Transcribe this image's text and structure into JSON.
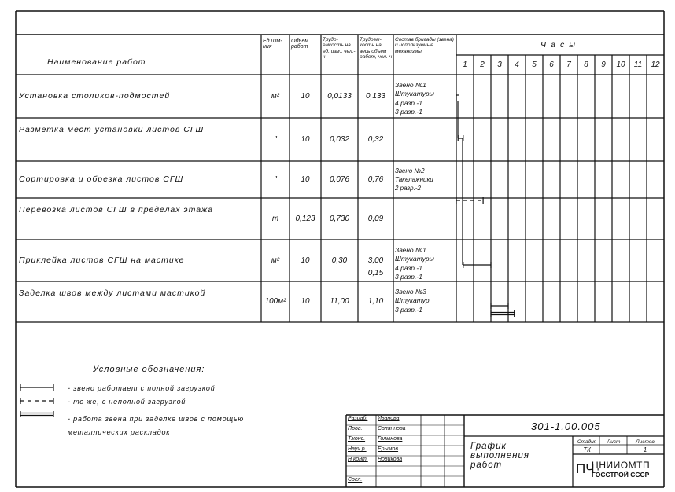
{
  "header": {
    "name": "Наименование работ",
    "unit": "Ед.изм-ния",
    "volume": "Объем работ",
    "labor_unit": "Трудо-емкость на ед. изм., чел.-ч",
    "labor_total": "Трудоем-кость на весь объем работ, чел.-ч",
    "crew": "Состав бригады (звена) и используемые механизмы",
    "hours_label": "Часы",
    "hours": [
      "1",
      "2",
      "3",
      "4",
      "5",
      "6",
      "7",
      "8",
      "9",
      "10",
      "11",
      "12"
    ]
  },
  "rows": [
    {
      "name": "Установка столиков-подмостей",
      "unit": "м²",
      "volume": "10",
      "labor_unit": "0,0133",
      "labor_total": "0,133",
      "crew": "Звено №1\nШтукатуры\n4 разр.-1\n3 разр.-1"
    },
    {
      "name": "Разметка мест установки листов СГШ",
      "unit": "\"",
      "volume": "10",
      "labor_unit": "0,032",
      "labor_total": "0,32",
      "crew": ""
    },
    {
      "name": "Сортировка и обрезка листов СГШ",
      "unit": "\"",
      "volume": "10",
      "labor_unit": "0,076",
      "labor_total": "0,76",
      "crew": "Звено №2\nТакелажники\n2 разр.-2"
    },
    {
      "name": "Перевозка листов СГШ в пределах этажа",
      "unit": "т",
      "volume": "0,123",
      "labor_unit": "0,730",
      "labor_total": "0,09",
      "crew": ""
    },
    {
      "name": "Приклейка листов СГШ на мастике",
      "unit": "м²",
      "volume": "10",
      "labor_unit": "0,30",
      "labor_total": "3,00\n0,15",
      "crew": "Звено №1\nШтукатуры\n4 разр.-1\n3 разр.-1"
    },
    {
      "name": "Заделка швов между листами мастикой",
      "unit": "100м²",
      "volume": "10",
      "labor_unit": "11,00",
      "labor_total": "1,10",
      "crew": "Звено №3\nШтукатур\n3 разр.-1"
    }
  ],
  "schedule": [
    {
      "row": 1,
      "start_hour": 0,
      "end_hour": 0.05,
      "style": "full"
    },
    {
      "row": 2,
      "start_hour": 0.1,
      "end_hour": 0.4,
      "style": "full"
    },
    {
      "row": 3,
      "start_hour": 0,
      "end_hour": 1.55,
      "style": "partial"
    },
    {
      "row": 5,
      "start_hour": 0.4,
      "end_hour": 2,
      "style": "full"
    },
    {
      "row": 6,
      "start_hour": 2,
      "end_hour": 3,
      "style": "full"
    },
    {
      "row": 6,
      "start_hour": 2,
      "end_hour": 3.35,
      "style": "double"
    }
  ],
  "legend": {
    "title": "Условные обозначения:",
    "items": [
      {
        "style": "full",
        "text": "- звено работает с полной загрузкой"
      },
      {
        "style": "partial",
        "text": "- то же, с неполной загрузкой"
      },
      {
        "style": "double",
        "text": "- работа звена при заделке швов с помощью металлических раскладок"
      }
    ]
  },
  "title_block": {
    "signatures": [
      {
        "role": "Разраб.",
        "name": "Иванова"
      },
      {
        "role": "Пров.",
        "name": "Соляннова"
      },
      {
        "role": "Т.конс.",
        "name": "Голынова"
      },
      {
        "role": "Науч.р.",
        "name": "Ерымов"
      },
      {
        "role": "Н.конт.",
        "name": "Новикова"
      },
      {
        "role": "",
        "name": ""
      },
      {
        "role": "Согл.",
        "name": ""
      }
    ],
    "code": "301-1.00.005",
    "title": "График выполнения работ",
    "stage_label": "Стадия",
    "sheet_label": "Лист",
    "sheets_label": "Листов",
    "stage": "ТК",
    "sheet": "",
    "sheets": "1",
    "org_prefix": "ПЧ",
    "org_line1": "ЦНИИОМТП",
    "org_line2": "ГОССТРОЙ СССР"
  },
  "colors": {
    "ink": "#111111",
    "paper": "#ffffff"
  }
}
